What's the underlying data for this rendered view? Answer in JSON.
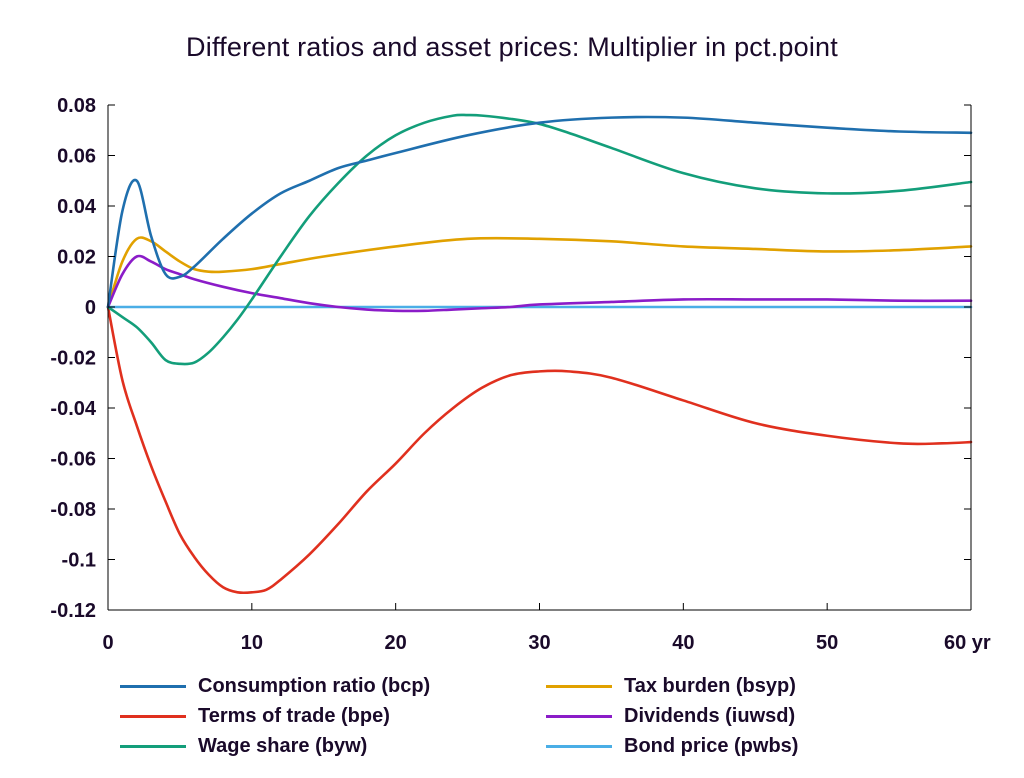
{
  "chart_data": {
    "type": "line",
    "title": "Different ratios and asset prices: Multiplier in pct.point",
    "xlabel": "",
    "ylabel": "",
    "x_unit_label": "yr",
    "xlim": [
      0,
      60
    ],
    "ylim": [
      -0.12,
      0.08
    ],
    "x_ticks": [
      0,
      10,
      20,
      30,
      40,
      50,
      60
    ],
    "x_tick_labels": [
      "0",
      "10",
      "20",
      "30",
      "40",
      "50",
      "60 yr"
    ],
    "y_ticks": [
      0.08,
      0.06,
      0.04,
      0.02,
      0,
      -0.02,
      -0.04,
      -0.06,
      -0.08,
      -0.1,
      -0.12
    ],
    "y_tick_labels": [
      "0.08",
      "0.06",
      "0.04",
      "0.02",
      "0",
      "-0.02",
      "-0.04",
      "-0.06",
      "-0.08",
      "-0.1",
      "-0.12"
    ],
    "grid": false,
    "legend_position": "bottom",
    "series": [
      {
        "name": "Consumption ratio (bcp)",
        "color": "#1f6fae",
        "x": [
          0,
          1,
          2,
          3,
          4,
          5,
          6,
          8,
          10,
          12,
          14,
          16,
          18,
          20,
          25,
          30,
          35,
          40,
          45,
          50,
          55,
          60
        ],
        "y": [
          0,
          0.038,
          0.05,
          0.028,
          0.013,
          0.012,
          0.016,
          0.027,
          0.037,
          0.045,
          0.05,
          0.055,
          0.058,
          0.061,
          0.068,
          0.073,
          0.075,
          0.075,
          0.073,
          0.071,
          0.0695,
          0.069
        ]
      },
      {
        "name": "Tax burden (bsyp)",
        "color": "#e1a100",
        "x": [
          0,
          1,
          2,
          3,
          4,
          5,
          6,
          7,
          8,
          10,
          12,
          15,
          20,
          25,
          30,
          35,
          40,
          45,
          50,
          55,
          60
        ],
        "y": [
          0,
          0.018,
          0.027,
          0.026,
          0.022,
          0.018,
          0.015,
          0.014,
          0.014,
          0.015,
          0.017,
          0.02,
          0.024,
          0.027,
          0.027,
          0.026,
          0.024,
          0.023,
          0.022,
          0.0225,
          0.024
        ]
      },
      {
        "name": "Terms of trade (bpe)",
        "color": "#e0301e",
        "x": [
          0,
          1,
          2,
          3,
          4,
          5,
          6,
          7,
          8,
          9,
          10,
          11,
          12,
          14,
          16,
          18,
          20,
          22,
          24,
          26,
          28,
          30,
          32,
          35,
          40,
          45,
          50,
          55,
          58,
          60
        ],
        "y": [
          0,
          -0.029,
          -0.047,
          -0.063,
          -0.077,
          -0.09,
          -0.099,
          -0.106,
          -0.111,
          -0.113,
          -0.113,
          -0.112,
          -0.108,
          -0.098,
          -0.086,
          -0.073,
          -0.062,
          -0.05,
          -0.04,
          -0.032,
          -0.027,
          -0.0255,
          -0.0255,
          -0.028,
          -0.037,
          -0.046,
          -0.051,
          -0.054,
          -0.054,
          -0.0535
        ]
      },
      {
        "name": "Dividends (iuwsd)",
        "color": "#8b1cc8",
        "x": [
          0,
          1,
          2,
          3,
          4,
          5,
          6,
          8,
          10,
          12,
          14,
          16,
          18,
          20,
          22,
          24,
          26,
          28,
          30,
          35,
          40,
          45,
          50,
          55,
          60
        ],
        "y": [
          0,
          0.013,
          0.02,
          0.018,
          0.015,
          0.013,
          0.011,
          0.008,
          0.0055,
          0.0035,
          0.0015,
          0.0,
          -0.001,
          -0.0015,
          -0.0015,
          -0.001,
          -0.0005,
          0.0,
          0.001,
          0.002,
          0.003,
          0.003,
          0.003,
          0.0025,
          0.0025
        ]
      },
      {
        "name": "Wage share (byw)",
        "color": "#139e7a",
        "x": [
          0,
          1,
          2,
          3,
          4,
          5,
          6,
          7,
          8,
          9,
          10,
          12,
          14,
          16,
          18,
          20,
          22,
          24,
          25,
          26,
          28,
          30,
          32,
          35,
          40,
          45,
          50,
          55,
          60
        ],
        "y": [
          0,
          -0.004,
          -0.008,
          -0.014,
          -0.021,
          -0.0225,
          -0.022,
          -0.018,
          -0.012,
          -0.005,
          0.003,
          0.02,
          0.036,
          0.049,
          0.06,
          0.068,
          0.073,
          0.0758,
          0.076,
          0.0758,
          0.0745,
          0.0725,
          0.069,
          0.063,
          0.053,
          0.047,
          0.045,
          0.046,
          0.0495
        ]
      },
      {
        "name": "Bond price (pwbs)",
        "color": "#4aaee6",
        "x": [
          0,
          60
        ],
        "y": [
          0,
          0
        ]
      }
    ]
  }
}
